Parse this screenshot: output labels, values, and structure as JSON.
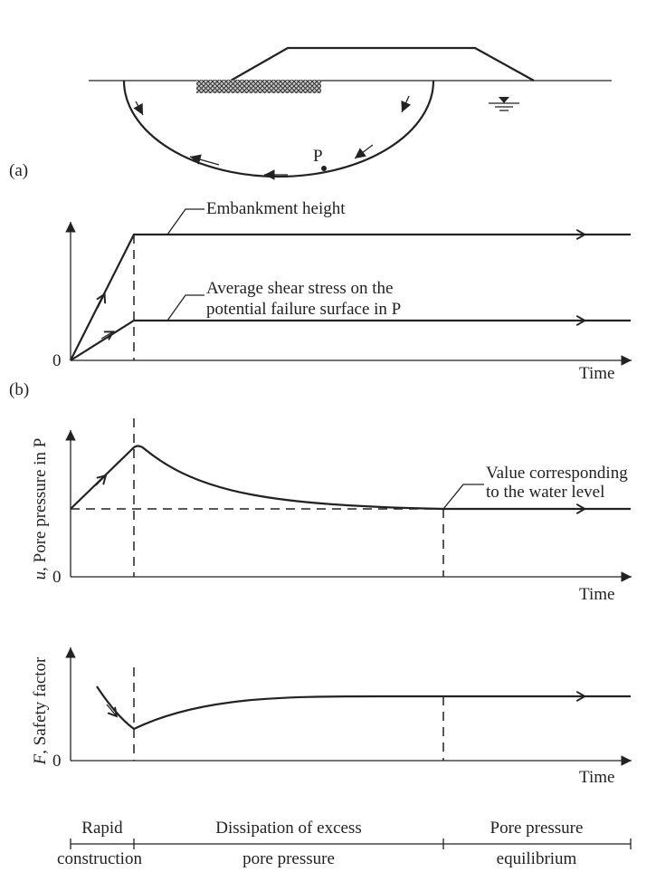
{
  "panel_a": {
    "label": "(a)",
    "point": "P"
  },
  "panel_b": {
    "label": "(b)",
    "embankment_label": "Embankment height",
    "shear_label": [
      "Average shear stress on the",
      "potential failure surface in P"
    ],
    "origin": "0",
    "x_label": "Time"
  },
  "panel_pore": {
    "y_label_symbol": "u",
    "y_label": ", Pore pressure in P",
    "annotation": [
      "Value corresponding",
      "to the water level"
    ],
    "origin": "0",
    "x_label": "Time"
  },
  "panel_safety": {
    "y_label_symbol": "F",
    "y_label": ", Safety factor",
    "origin": "0",
    "x_label": "Time"
  },
  "phases": [
    {
      "top": "Rapid",
      "bottom": "construction"
    },
    {
      "top": "Dissipation of excess",
      "bottom": "pore pressure"
    },
    {
      "top": "Pore pressure",
      "bottom": "equilibrium"
    }
  ]
}
